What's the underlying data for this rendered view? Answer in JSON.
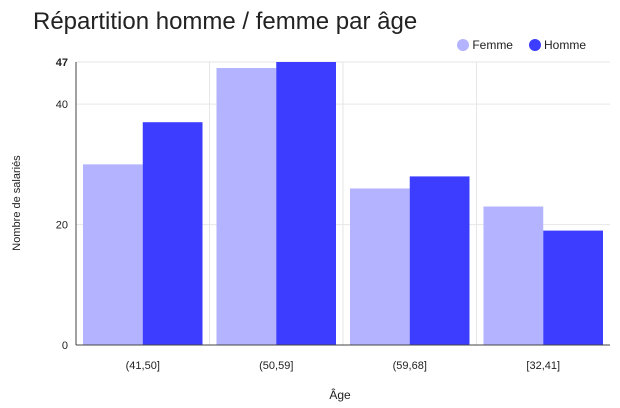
{
  "chart_data": {
    "type": "bar",
    "title": "Répartition homme / femme par âge",
    "xlabel": "Âge",
    "ylabel": "Nombre de salariés",
    "categories": [
      "(41,50]",
      "(50,59]",
      "(59,68]",
      "[32,41]"
    ],
    "series": [
      {
        "name": "Femme",
        "color": "#b3b3ff",
        "values": [
          30,
          46,
          26,
          23
        ]
      },
      {
        "name": "Homme",
        "color": "#3d3dff",
        "values": [
          37,
          47,
          28,
          19
        ]
      }
    ],
    "ylim": [
      0,
      47
    ],
    "yticks": [
      0,
      20,
      40,
      47
    ],
    "grid": true,
    "legend_position": "top-right"
  }
}
